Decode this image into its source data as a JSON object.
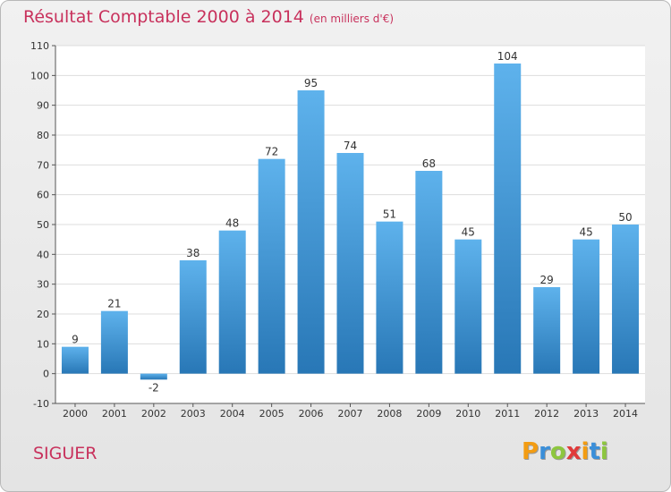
{
  "header": {
    "title": "Résultat Comptable 2000 à 2014",
    "subtitle": "(en milliers d'€)"
  },
  "commune": "SIGUER",
  "brand": {
    "letters": [
      "P",
      "r",
      "o",
      "x",
      "i",
      "t",
      "i"
    ],
    "colors": [
      "#f39c12",
      "#3b8fd9",
      "#8dc63f",
      "#e03a3a",
      "#f39c12",
      "#3b8fd9",
      "#8dc63f"
    ]
  },
  "colors": {
    "bar_light": "#5eb2ec",
    "bar_dark": "#2877b6",
    "grid": "#dddddd",
    "title": "#c8315c"
  },
  "chart_data": {
    "type": "bar",
    "title": "Résultat Comptable 2000 à 2014",
    "xlabel": "",
    "ylabel": "",
    "categories": [
      "2000",
      "2001",
      "2002",
      "2003",
      "2004",
      "2005",
      "2006",
      "2007",
      "2008",
      "2009",
      "2010",
      "2011",
      "2012",
      "2013",
      "2014"
    ],
    "values": [
      9,
      21,
      -2,
      38,
      48,
      72,
      95,
      74,
      51,
      68,
      45,
      104,
      29,
      45,
      50
    ],
    "value_labels": [
      "9",
      "21",
      "-2",
      "38",
      "48",
      "72",
      "95",
      "74",
      "51",
      "68",
      "45",
      "104",
      "29",
      "45",
      "50"
    ],
    "ylim": [
      -10,
      110
    ],
    "yticks": [
      -10,
      0,
      10,
      20,
      30,
      40,
      50,
      60,
      70,
      80,
      90,
      100,
      110
    ],
    "ytick_labels": [
      "-10",
      "0",
      "10",
      "20",
      "30",
      "40",
      "50",
      "60",
      "70",
      "80",
      "90",
      "100",
      "110"
    ],
    "grid": true
  }
}
